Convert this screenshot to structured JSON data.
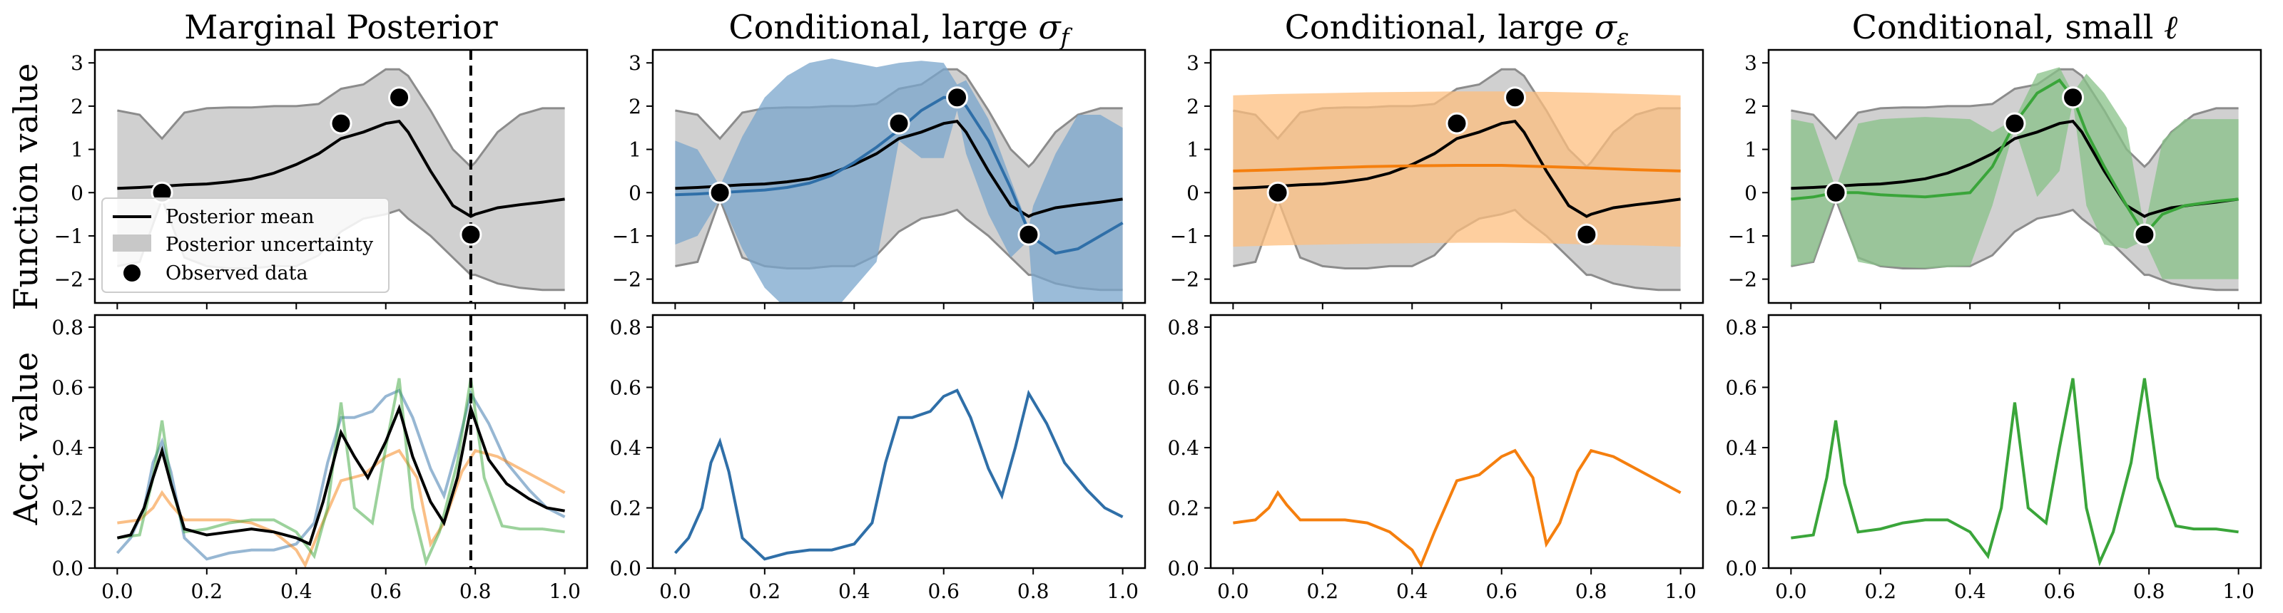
{
  "figure": {
    "ylabel_top": "Function value",
    "ylabel_bottom": "Acq. value"
  },
  "legend": {
    "mean": "Posterior mean",
    "uncertainty": "Posterior uncertainty",
    "observed": "Observed data"
  },
  "colors": {
    "marginal": "#000000",
    "sigma_f": "#2f6fa8",
    "sigma_eps": "#f57f0e",
    "lengthscale": "#3aa53a",
    "marginal_band": "#c8c8c8",
    "sigma_f_band": "#7aa6cc",
    "sigma_eps_band": "#fdbf7f",
    "lengthscale_band": "#88c288"
  },
  "chart_data": [
    {
      "type": "line",
      "title": "Marginal Posterior",
      "title_parts": [],
      "xlim": [
        -0.05,
        1.05
      ],
      "ylim": [
        -2.55,
        3.3
      ],
      "yticks": [
        -2,
        -1,
        0,
        1,
        2,
        3
      ],
      "observed": {
        "x": [
          0.1,
          0.5,
          0.63,
          0.79
        ],
        "y": [
          0.0,
          1.6,
          2.2,
          -0.97
        ]
      },
      "vline_x": 0.79,
      "series": [
        {
          "name": "Posterior mean",
          "color_key": "marginal",
          "x": [
            0,
            0.05,
            0.1,
            0.15,
            0.2,
            0.25,
            0.3,
            0.35,
            0.4,
            0.45,
            0.5,
            0.55,
            0.6,
            0.63,
            0.65,
            0.7,
            0.75,
            0.79,
            0.8,
            0.85,
            0.9,
            0.95,
            1.0
          ],
          "y": [
            0.1,
            0.12,
            0.15,
            0.18,
            0.2,
            0.25,
            0.32,
            0.45,
            0.65,
            0.9,
            1.25,
            1.4,
            1.6,
            1.65,
            1.4,
            0.5,
            -0.3,
            -0.55,
            -0.5,
            -0.35,
            -0.28,
            -0.22,
            -0.15
          ],
          "upper": [
            1.9,
            1.8,
            1.25,
            1.85,
            1.95,
            1.97,
            1.97,
            2.0,
            2.0,
            2.05,
            2.4,
            2.5,
            2.85,
            2.85,
            2.7,
            1.9,
            1.0,
            0.6,
            0.7,
            1.4,
            1.8,
            1.95,
            1.95
          ],
          "lower": [
            -1.7,
            -1.6,
            -0.15,
            -1.5,
            -1.7,
            -1.75,
            -1.75,
            -1.7,
            -1.7,
            -1.45,
            -0.9,
            -0.6,
            -0.5,
            -0.4,
            -0.6,
            -1.0,
            -1.5,
            -1.9,
            -1.9,
            -2.1,
            -2.2,
            -2.25,
            -2.25
          ]
        }
      ]
    },
    {
      "type": "line",
      "title": "",
      "title_parts": [
        {
          "text": "Conditional, large "
        },
        {
          "text": "σ",
          "italic": true
        },
        {
          "text": "f",
          "italic": true,
          "sub": true
        }
      ],
      "xlim": [
        -0.05,
        1.05
      ],
      "ylim": [
        -2.55,
        3.3
      ],
      "yticks": [
        -2,
        -1,
        0,
        1,
        2,
        3
      ],
      "observed": {
        "x": [
          0.1,
          0.5,
          0.63,
          0.79
        ],
        "y": [
          0.0,
          1.6,
          2.2,
          -0.97
        ]
      },
      "series": [
        {
          "name": "",
          "color_key": "sigma_f",
          "band_key": "sigma_f_band",
          "x": [
            0,
            0.05,
            0.1,
            0.15,
            0.2,
            0.25,
            0.3,
            0.35,
            0.4,
            0.45,
            0.5,
            0.55,
            0.6,
            0.63,
            0.65,
            0.7,
            0.75,
            0.79,
            0.8,
            0.85,
            0.9,
            0.95,
            1.0
          ],
          "y": [
            -0.05,
            -0.03,
            0.0,
            0.03,
            0.06,
            0.12,
            0.22,
            0.4,
            0.7,
            1.05,
            1.45,
            1.9,
            2.2,
            2.2,
            2.0,
            1.2,
            0.1,
            -0.9,
            -1.05,
            -1.4,
            -1.3,
            -1.0,
            -0.7
          ],
          "upper": [
            1.2,
            1.0,
            0.15,
            1.3,
            2.2,
            2.7,
            3.0,
            3.1,
            3.0,
            2.9,
            3.0,
            3.05,
            3.0,
            2.5,
            2.6,
            1.7,
            0.3,
            -0.8,
            -0.3,
            0.9,
            1.8,
            1.8,
            1.5
          ],
          "lower": [
            -1.2,
            -1.0,
            -0.15,
            -1.3,
            -2.2,
            -2.7,
            -2.9,
            -2.8,
            -2.2,
            -1.6,
            1.2,
            0.8,
            0.8,
            1.9,
            0.9,
            -0.5,
            -1.5,
            -1.1,
            -2.5,
            -3.0,
            -3.2,
            -3.0,
            -2.8
          ]
        }
      ]
    },
    {
      "type": "line",
      "title": "",
      "title_parts": [
        {
          "text": "Conditional, large "
        },
        {
          "text": "σ",
          "italic": true
        },
        {
          "text": "ε",
          "italic": true,
          "sub": true
        }
      ],
      "xlim": [
        -0.05,
        1.05
      ],
      "ylim": [
        -2.55,
        3.3
      ],
      "yticks": [
        -2,
        -1,
        0,
        1,
        2,
        3
      ],
      "observed": {
        "x": [
          0.1,
          0.5,
          0.63,
          0.79
        ],
        "y": [
          0.0,
          1.6,
          2.2,
          -0.97
        ]
      },
      "series": [
        {
          "name": "",
          "color_key": "sigma_eps",
          "band_key": "sigma_eps_band",
          "x": [
            0,
            0.1,
            0.2,
            0.3,
            0.4,
            0.5,
            0.6,
            0.7,
            0.8,
            0.9,
            1.0
          ],
          "y": [
            0.5,
            0.53,
            0.57,
            0.6,
            0.62,
            0.63,
            0.63,
            0.6,
            0.57,
            0.53,
            0.5
          ],
          "upper": [
            2.25,
            2.28,
            2.3,
            2.32,
            2.33,
            2.34,
            2.34,
            2.33,
            2.31,
            2.28,
            2.25
          ],
          "lower": [
            -1.25,
            -1.22,
            -1.2,
            -1.18,
            -1.17,
            -1.16,
            -1.16,
            -1.17,
            -1.2,
            -1.22,
            -1.25
          ]
        }
      ]
    },
    {
      "type": "line",
      "title": "",
      "title_parts": [
        {
          "text": "Conditional, small "
        },
        {
          "text": "ℓ",
          "italic": true
        }
      ],
      "xlim": [
        -0.05,
        1.05
      ],
      "ylim": [
        -2.55,
        3.3
      ],
      "yticks": [
        -2,
        -1,
        0,
        1,
        2,
        3
      ],
      "observed": {
        "x": [
          0.1,
          0.5,
          0.63,
          0.79
        ],
        "y": [
          0.0,
          1.6,
          2.2,
          -0.97
        ]
      },
      "series": [
        {
          "name": "",
          "color_key": "lengthscale",
          "band_key": "lengthscale_band",
          "x": [
            0,
            0.05,
            0.1,
            0.15,
            0.2,
            0.3,
            0.4,
            0.45,
            0.5,
            0.55,
            0.6,
            0.63,
            0.66,
            0.7,
            0.75,
            0.79,
            0.83,
            0.88,
            0.95,
            1.0
          ],
          "y": [
            -0.15,
            -0.1,
            0.0,
            0.0,
            -0.05,
            -0.1,
            0.0,
            0.6,
            1.6,
            2.3,
            2.6,
            2.2,
            1.4,
            0.6,
            -0.3,
            -0.97,
            -0.5,
            -0.3,
            -0.2,
            -0.15
          ],
          "upper": [
            1.7,
            1.6,
            0.1,
            1.6,
            1.7,
            1.75,
            1.7,
            1.4,
            1.7,
            2.75,
            2.9,
            2.3,
            2.75,
            2.3,
            1.5,
            -0.85,
            1.2,
            1.7,
            1.7,
            1.7
          ],
          "lower": [
            -1.7,
            -1.6,
            -0.1,
            -1.6,
            -1.7,
            -1.75,
            -1.7,
            -0.3,
            1.5,
            -0.1,
            0.5,
            2.1,
            -0.3,
            -1.2,
            -1.3,
            -1.1,
            -2.0,
            -2.0,
            -2.0,
            -2.0
          ]
        }
      ]
    },
    {
      "type": "line",
      "title": "",
      "xlim": [
        -0.05,
        1.05
      ],
      "ylim": [
        0.0,
        0.84
      ],
      "yticks": [
        0.0,
        0.2,
        0.4,
        0.6,
        0.8
      ],
      "xticks": [
        0.0,
        0.2,
        0.4,
        0.6,
        0.8,
        1.0
      ],
      "vline_x": 0.79,
      "series": [
        {
          "name": "",
          "color_key": "sigma_f",
          "alpha": 0.5,
          "x": [
            0,
            0.03,
            0.06,
            0.08,
            0.1,
            0.12,
            0.15,
            0.2,
            0.25,
            0.3,
            0.35,
            0.4,
            0.44,
            0.47,
            0.5,
            0.53,
            0.57,
            0.6,
            0.63,
            0.66,
            0.7,
            0.73,
            0.76,
            0.79,
            0.83,
            0.87,
            0.92,
            0.96,
            1.0
          ],
          "y": [
            0.05,
            0.1,
            0.2,
            0.35,
            0.42,
            0.32,
            0.1,
            0.03,
            0.05,
            0.06,
            0.06,
            0.08,
            0.15,
            0.35,
            0.5,
            0.5,
            0.52,
            0.57,
            0.59,
            0.5,
            0.33,
            0.24,
            0.4,
            0.58,
            0.48,
            0.35,
            0.26,
            0.2,
            0.17
          ]
        },
        {
          "name": "",
          "color_key": "sigma_eps",
          "alpha": 0.5,
          "x": [
            0,
            0.05,
            0.08,
            0.1,
            0.12,
            0.15,
            0.2,
            0.25,
            0.3,
            0.35,
            0.4,
            0.42,
            0.45,
            0.5,
            0.55,
            0.6,
            0.63,
            0.67,
            0.7,
            0.73,
            0.77,
            0.8,
            0.85,
            0.9,
            0.95,
            1.0
          ],
          "y": [
            0.15,
            0.16,
            0.2,
            0.25,
            0.21,
            0.16,
            0.16,
            0.16,
            0.15,
            0.12,
            0.06,
            0.01,
            0.12,
            0.29,
            0.31,
            0.37,
            0.39,
            0.3,
            0.08,
            0.15,
            0.32,
            0.39,
            0.37,
            0.33,
            0.29,
            0.25
          ]
        },
        {
          "name": "",
          "color_key": "lengthscale",
          "alpha": 0.5,
          "x": [
            0,
            0.05,
            0.08,
            0.1,
            0.12,
            0.15,
            0.2,
            0.25,
            0.3,
            0.35,
            0.4,
            0.44,
            0.47,
            0.5,
            0.53,
            0.57,
            0.6,
            0.63,
            0.66,
            0.69,
            0.72,
            0.76,
            0.79,
            0.82,
            0.86,
            0.9,
            0.95,
            1.0
          ],
          "y": [
            0.1,
            0.11,
            0.3,
            0.49,
            0.28,
            0.12,
            0.13,
            0.15,
            0.16,
            0.16,
            0.12,
            0.04,
            0.2,
            0.55,
            0.2,
            0.15,
            0.4,
            0.63,
            0.2,
            0.02,
            0.12,
            0.35,
            0.63,
            0.3,
            0.14,
            0.13,
            0.13,
            0.12
          ]
        },
        {
          "name": "",
          "color_key": "marginal",
          "alpha": 1.0,
          "width": 4,
          "x": [
            0,
            0.03,
            0.06,
            0.08,
            0.1,
            0.12,
            0.15,
            0.2,
            0.25,
            0.3,
            0.35,
            0.4,
            0.43,
            0.46,
            0.5,
            0.53,
            0.56,
            0.6,
            0.63,
            0.66,
            0.7,
            0.73,
            0.76,
            0.79,
            0.83,
            0.87,
            0.92,
            0.96,
            1.0
          ],
          "y": [
            0.1,
            0.11,
            0.2,
            0.3,
            0.39,
            0.28,
            0.13,
            0.11,
            0.12,
            0.13,
            0.12,
            0.1,
            0.08,
            0.22,
            0.45,
            0.37,
            0.3,
            0.42,
            0.53,
            0.37,
            0.22,
            0.15,
            0.3,
            0.53,
            0.36,
            0.28,
            0.23,
            0.2,
            0.19
          ]
        }
      ]
    },
    {
      "type": "line",
      "title": "",
      "xlim": [
        -0.05,
        1.05
      ],
      "ylim": [
        0.0,
        0.84
      ],
      "yticks": [
        0.0,
        0.2,
        0.4,
        0.6,
        0.8
      ],
      "xticks": [
        0.0,
        0.2,
        0.4,
        0.6,
        0.8,
        1.0
      ],
      "series": [
        {
          "name": "",
          "color_key": "sigma_f",
          "alpha": 1.0,
          "x": [
            0,
            0.03,
            0.06,
            0.08,
            0.1,
            0.12,
            0.15,
            0.2,
            0.25,
            0.3,
            0.35,
            0.4,
            0.44,
            0.47,
            0.5,
            0.53,
            0.57,
            0.6,
            0.63,
            0.66,
            0.7,
            0.73,
            0.76,
            0.79,
            0.83,
            0.87,
            0.92,
            0.96,
            1.0
          ],
          "y": [
            0.05,
            0.1,
            0.2,
            0.35,
            0.42,
            0.32,
            0.1,
            0.03,
            0.05,
            0.06,
            0.06,
            0.08,
            0.15,
            0.35,
            0.5,
            0.5,
            0.52,
            0.57,
            0.59,
            0.5,
            0.33,
            0.24,
            0.4,
            0.58,
            0.48,
            0.35,
            0.26,
            0.2,
            0.17
          ]
        }
      ]
    },
    {
      "type": "line",
      "title": "",
      "xlim": [
        -0.05,
        1.05
      ],
      "ylim": [
        0.0,
        0.84
      ],
      "yticks": [
        0.0,
        0.2,
        0.4,
        0.6,
        0.8
      ],
      "xticks": [
        0.0,
        0.2,
        0.4,
        0.6,
        0.8,
        1.0
      ],
      "series": [
        {
          "name": "",
          "color_key": "sigma_eps",
          "alpha": 1.0,
          "x": [
            0,
            0.05,
            0.08,
            0.1,
            0.12,
            0.15,
            0.2,
            0.25,
            0.3,
            0.35,
            0.4,
            0.42,
            0.45,
            0.5,
            0.55,
            0.6,
            0.63,
            0.67,
            0.7,
            0.73,
            0.77,
            0.8,
            0.85,
            0.9,
            0.95,
            1.0
          ],
          "y": [
            0.15,
            0.16,
            0.2,
            0.25,
            0.21,
            0.16,
            0.16,
            0.16,
            0.15,
            0.12,
            0.06,
            0.01,
            0.12,
            0.29,
            0.31,
            0.37,
            0.39,
            0.3,
            0.08,
            0.15,
            0.32,
            0.39,
            0.37,
            0.33,
            0.29,
            0.25
          ]
        }
      ]
    },
    {
      "type": "line",
      "title": "",
      "xlim": [
        -0.05,
        1.05
      ],
      "ylim": [
        0.0,
        0.84
      ],
      "yticks": [
        0.0,
        0.2,
        0.4,
        0.6,
        0.8
      ],
      "xticks": [
        0.0,
        0.2,
        0.4,
        0.6,
        0.8,
        1.0
      ],
      "series": [
        {
          "name": "",
          "color_key": "lengthscale",
          "alpha": 1.0,
          "x": [
            0,
            0.05,
            0.08,
            0.1,
            0.12,
            0.15,
            0.2,
            0.25,
            0.3,
            0.35,
            0.4,
            0.44,
            0.47,
            0.5,
            0.53,
            0.57,
            0.6,
            0.63,
            0.66,
            0.69,
            0.72,
            0.76,
            0.79,
            0.82,
            0.86,
            0.9,
            0.95,
            1.0
          ],
          "y": [
            0.1,
            0.11,
            0.3,
            0.49,
            0.28,
            0.12,
            0.13,
            0.15,
            0.16,
            0.16,
            0.12,
            0.04,
            0.2,
            0.55,
            0.2,
            0.15,
            0.4,
            0.63,
            0.2,
            0.02,
            0.12,
            0.35,
            0.63,
            0.3,
            0.14,
            0.13,
            0.13,
            0.12
          ]
        }
      ]
    }
  ]
}
